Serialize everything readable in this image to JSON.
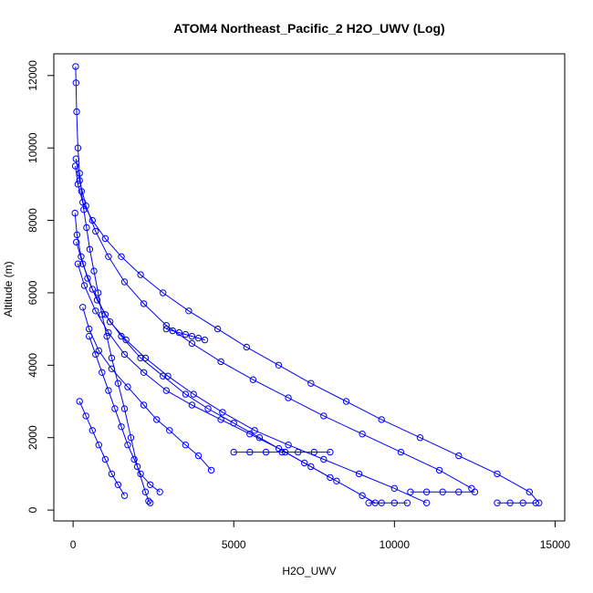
{
  "chart_data": {
    "type": "scatter",
    "title": "ATOM4 Northeast_Pacific_2 H2O_UWV (Log)",
    "xlabel": "H2O_UWV",
    "ylabel": "Altitude (m)",
    "xlim": [
      -600,
      15300
    ],
    "ylim": [
      -300,
      12600
    ],
    "xticks": [
      0,
      5000,
      10000,
      15000
    ],
    "yticks": [
      0,
      2000,
      4000,
      6000,
      8000,
      10000,
      12000
    ],
    "color": "#0000ff",
    "marker": "open-circle",
    "lines_connect_points": true,
    "series": [
      {
        "x": [
          80,
          90,
          110,
          150,
          200,
          260,
          330,
          420,
          520,
          650,
          780,
          900,
          1050,
          1200,
          1400,
          1600,
          1800,
          2000,
          2250,
          2350,
          2400
        ],
        "y": [
          12250,
          11800,
          11000,
          10000,
          9300,
          8800,
          8300,
          7800,
          7200,
          6600,
          6000,
          5400,
          4800,
          4200,
          3500,
          2800,
          2000,
          1200,
          500,
          250,
          200
        ]
      },
      {
        "x": [
          70,
          150,
          300,
          600,
          1000,
          1500,
          2100,
          2800,
          3600,
          4500,
          5400,
          6400,
          7400,
          8500,
          9600,
          10800,
          12000,
          13200,
          14200,
          14500
        ],
        "y": [
          9500,
          9000,
          8500,
          8000,
          7500,
          7000,
          6500,
          6000,
          5500,
          5000,
          4500,
          4000,
          3500,
          3000,
          2500,
          2000,
          1500,
          1000,
          500,
          200
        ]
      },
      {
        "x": [
          90,
          200,
          400,
          700,
          1100,
          1600,
          2200,
          2900,
          3700,
          4600,
          5600,
          6700,
          7800,
          9000,
          10200,
          11400,
          12400
        ],
        "y": [
          9700,
          9100,
          8400,
          7700,
          7000,
          6300,
          5700,
          5100,
          4600,
          4100,
          3600,
          3100,
          2600,
          2100,
          1600,
          1100,
          600
        ]
      },
      {
        "x": [
          60,
          120,
          250,
          450,
          750,
          1150,
          1650,
          2250,
          2950,
          3750,
          4650,
          5650,
          6700,
          7800,
          8900,
          10000,
          11000
        ],
        "y": [
          8200,
          7600,
          7000,
          6400,
          5800,
          5200,
          4700,
          4200,
          3700,
          3200,
          2700,
          2200,
          1800,
          1400,
          1000,
          600,
          200
        ]
      },
      {
        "x": [
          100,
          300,
          600,
          1000,
          1500,
          2100,
          2800,
          3500,
          4200,
          5000,
          5800,
          6600,
          7400,
          8200,
          9000,
          9400
        ],
        "y": [
          7400,
          6800,
          6100,
          5400,
          4800,
          4200,
          3700,
          3200,
          2800,
          2400,
          2000,
          1600,
          1200,
          800,
          400,
          200
        ]
      },
      {
        "x": [
          150,
          350,
          700,
          1100,
          1600,
          2200,
          2900,
          3700,
          4600,
          5500,
          6400,
          7200,
          8000
        ],
        "y": [
          6800,
          6200,
          5500,
          4900,
          4300,
          3800,
          3300,
          2900,
          2500,
          2100,
          1700,
          1300,
          900
        ]
      },
      {
        "x": [
          300,
          500,
          800,
          1200,
          1700,
          2200,
          2600,
          3000,
          3500,
          3900,
          4300
        ],
        "y": [
          5600,
          5000,
          4400,
          3900,
          3400,
          2900,
          2500,
          2200,
          1800,
          1500,
          1100
        ]
      },
      {
        "x": [
          500,
          700,
          900,
          1100,
          1300,
          1500,
          1700,
          1900,
          2100,
          2400,
          2700
        ],
        "y": [
          4800,
          4300,
          3800,
          3300,
          2800,
          2300,
          1800,
          1400,
          1000,
          700,
          500
        ]
      },
      {
        "x": [
          200,
          400,
          600,
          800,
          1000,
          1200,
          1400,
          1600
        ],
        "y": [
          3000,
          2600,
          2200,
          1800,
          1400,
          1000,
          700,
          400
        ]
      },
      {
        "x": [
          2900,
          3100,
          3300,
          3500,
          3700,
          3900,
          4100
        ],
        "y": [
          5000,
          4950,
          4900,
          4850,
          4800,
          4750,
          4700
        ]
      },
      {
        "x": [
          5000,
          5500,
          6000,
          6500,
          7000,
          7500,
          8000
        ],
        "y": [
          1600,
          1600,
          1600,
          1600,
          1600,
          1600,
          1600
        ]
      },
      {
        "x": [
          10500,
          11000,
          11500,
          12000,
          12500
        ],
        "y": [
          500,
          500,
          500,
          500,
          500
        ]
      },
      {
        "x": [
          9200,
          9600,
          10000,
          10400
        ],
        "y": [
          200,
          200,
          200,
          200
        ]
      },
      {
        "x": [
          13200,
          13600,
          14000,
          14400
        ],
        "y": [
          200,
          200,
          200,
          200
        ]
      }
    ]
  }
}
